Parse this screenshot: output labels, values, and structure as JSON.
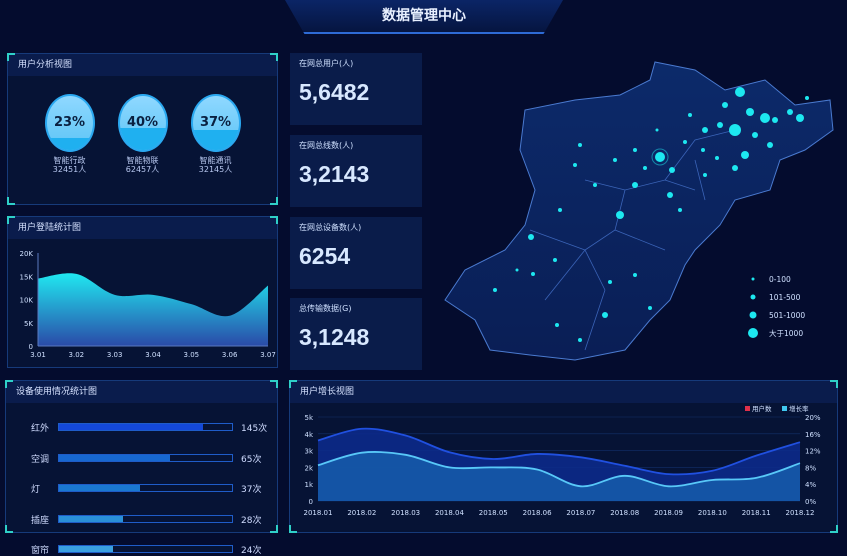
{
  "header": {
    "title": "数据管理中心"
  },
  "user_analysis": {
    "title": "用户分析视图",
    "items": [
      {
        "percent": "23%",
        "fill": 0.23,
        "name": "智能行政",
        "count": "32451人"
      },
      {
        "percent": "40%",
        "fill": 0.4,
        "name": "智能物联",
        "count": "62457人"
      },
      {
        "percent": "37%",
        "fill": 0.37,
        "name": "智能通讯",
        "count": "32145人"
      }
    ]
  },
  "stats": [
    {
      "label": "在网总用户(人)",
      "value": "5,6482"
    },
    {
      "label": "在网总线数(人)",
      "value": "3,2143"
    },
    {
      "label": "在网总设备数(人)",
      "value": "6254"
    },
    {
      "label": "总传输数据(G)",
      "value": "3,1248"
    }
  ],
  "login_panel": {
    "title": "用户登陆统计图"
  },
  "device_panel": {
    "title": "设备使用情况统计图"
  },
  "growth_panel": {
    "title": "用户增长视图"
  },
  "map": {
    "legend": [
      {
        "label": "0-100"
      },
      {
        "label": "101-500"
      },
      {
        "label": "501-1000"
      },
      {
        "label": "大于1000"
      }
    ],
    "dot_color": "#1de8f0"
  },
  "chart_data": [
    {
      "type": "area",
      "title": "用户登陆统计图",
      "categories": [
        "3.01",
        "3.02",
        "3.03",
        "3.04",
        "3.05",
        "3.06",
        "3.07"
      ],
      "values": [
        14500,
        15500,
        11000,
        11000,
        9000,
        6500,
        13000
      ],
      "ylim": [
        0,
        20000
      ],
      "yticks": [
        "0",
        "5K",
        "10K",
        "15K",
        "20K"
      ]
    },
    {
      "type": "bar",
      "title": "设备使用情况统计图",
      "categories": [
        "红外",
        "空调",
        "灯",
        "插座",
        "窗帘"
      ],
      "values": [
        145,
        65,
        37,
        28,
        24
      ],
      "labels": [
        "145次",
        "65次",
        "37次",
        "28次",
        "24次"
      ],
      "fill": [
        0.83,
        0.64,
        0.47,
        0.37,
        0.31
      ],
      "colors": [
        "#1448d8",
        "#1768d0",
        "#1a78d0",
        "#2a90d8",
        "#3aa0e0"
      ]
    },
    {
      "type": "area",
      "title": "用户增长视图",
      "categories": [
        "2018.01",
        "2018.02",
        "2018.03",
        "2018.04",
        "2018.05",
        "2018.06",
        "2018.07",
        "2018.08",
        "2018.09",
        "2018.10",
        "2018.11",
        "2018.12"
      ],
      "series": [
        {
          "name": "用户数",
          "axis": "left",
          "color": "#e0304a",
          "values": [
            3.6,
            4.3,
            3.9,
            2.9,
            2.5,
            2.8,
            2.6,
            2.1,
            1.6,
            1.8,
            2.7,
            3.5
          ]
        },
        {
          "name": "增长率",
          "axis": "right",
          "color": "#40c8f0",
          "values": [
            8.5,
            11.5,
            11,
            8,
            8,
            7.5,
            3.5,
            6,
            3.5,
            5,
            5.5,
            9
          ]
        }
      ],
      "yleft": {
        "ylim": [
          0,
          5
        ],
        "ticks": [
          "0",
          "1k",
          "2k",
          "3k",
          "4k",
          "5k"
        ]
      },
      "yright": {
        "ylim": [
          0,
          20
        ],
        "ticks": [
          "0%",
          "4%",
          "8%",
          "12%",
          "16%",
          "20%"
        ]
      },
      "legend": "top-right"
    }
  ]
}
